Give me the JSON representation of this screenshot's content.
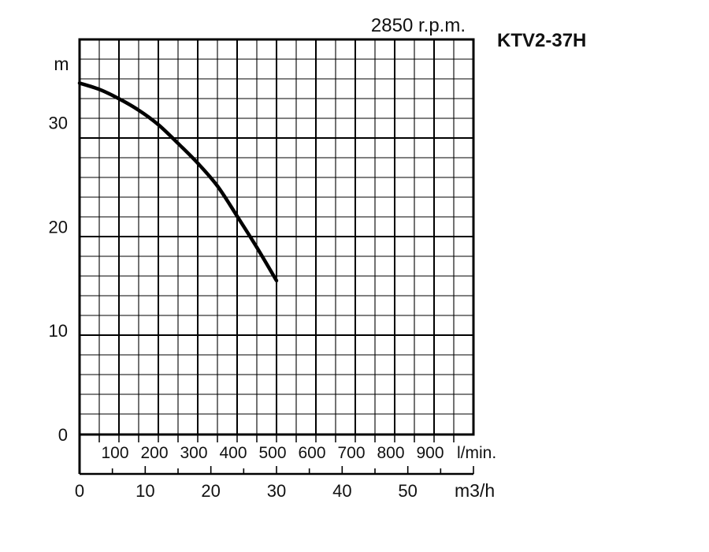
{
  "chart_data": {
    "type": "line",
    "title": "KTV2-37H",
    "subtitle": "2850 r.p.m.",
    "ylabel": "m",
    "xlabel": "l/min.",
    "x2label": "m3/h",
    "ylim": [
      0,
      38
    ],
    "xlim": [
      0,
      1000
    ],
    "x2lim": [
      0,
      60
    ],
    "y_ticks": [
      0,
      10,
      20,
      30
    ],
    "x_ticks": [
      100,
      200,
      300,
      400,
      500,
      600,
      700,
      800,
      900
    ],
    "x2_ticks": [
      0,
      10,
      20,
      30,
      40,
      50
    ],
    "grid": true,
    "series": [
      {
        "x": [
          0,
          50,
          100,
          150,
          200,
          250,
          300,
          350,
          400,
          450,
          500
        ],
        "y": [
          33.8,
          33.2,
          32.3,
          31.2,
          29.8,
          28.0,
          26.1,
          23.9,
          21.0,
          18.0,
          14.8
        ]
      }
    ]
  }
}
